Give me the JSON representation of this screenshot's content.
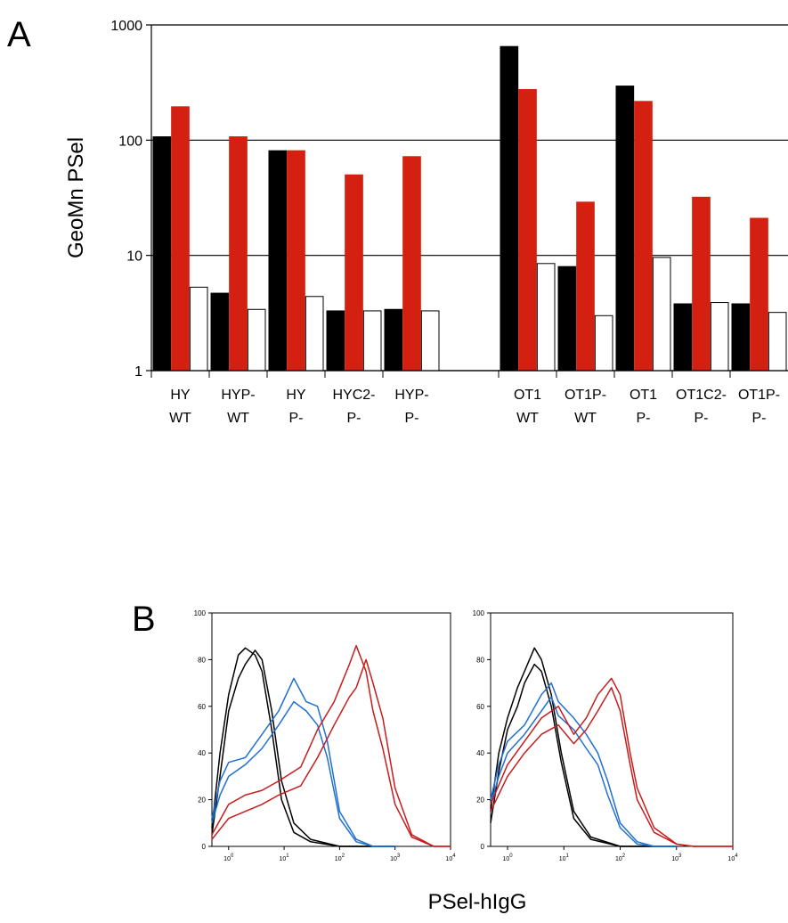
{
  "panel_a": {
    "label": "A",
    "chart_data": {
      "type": "bar",
      "scale": "log",
      "ylabel": "GeoMn PSel",
      "ylim": [
        1,
        1000
      ],
      "yticks": [
        "1",
        "10",
        "100",
        "1000"
      ],
      "grid": true,
      "categories": [
        [
          "HY",
          "WT"
        ],
        [
          "HYP-",
          "WT"
        ],
        [
          "HY",
          "P-"
        ],
        [
          "HYC2-",
          "P-"
        ],
        [
          "HYP-",
          "P-"
        ],
        [
          "OT1",
          "WT"
        ],
        [
          "OT1P-",
          "WT"
        ],
        [
          "OT1",
          "P-"
        ],
        [
          "OT1C2-",
          "P-"
        ],
        [
          "OT1P-",
          "P-"
        ]
      ],
      "group_gap_after_index": 4,
      "series": [
        {
          "color": "#000000",
          "fill": "#000000",
          "values": [
            107,
            4.7,
            81,
            3.3,
            3.4,
            650,
            8,
            295,
            3.8,
            3.8
          ]
        },
        {
          "color": "#d42010",
          "fill": "#d42010",
          "values": [
            195,
            107,
            81,
            50,
            72,
            275,
            29,
            217,
            32,
            21
          ]
        },
        {
          "color": "#000000",
          "fill": "#ffffff",
          "values": [
            5.3,
            3.4,
            4.4,
            3.3,
            3.3,
            8.5,
            3.0,
            9.6,
            3.9,
            3.2
          ]
        }
      ]
    }
  },
  "panel_b": {
    "label": "B",
    "xlabel": "PSel-hIgG",
    "chart_data": [
      {
        "type": "line",
        "scale_x": "log",
        "ylim": [
          0,
          100
        ],
        "xlim": [
          0.5,
          10000
        ],
        "yticks": [
          "0",
          "20",
          "40",
          "60",
          "80",
          "100"
        ],
        "xticks": [
          {
            "base": "10",
            "exp": "0"
          },
          {
            "base": "10",
            "exp": "1"
          },
          {
            "base": "10",
            "exp": "2"
          },
          {
            "base": "10",
            "exp": "3"
          },
          {
            "base": "10",
            "exp": "4"
          }
        ],
        "series": [
          {
            "color": "#000000",
            "points": [
              [
                0.5,
                8
              ],
              [
                0.7,
                40
              ],
              [
                1,
                65
              ],
              [
                1.5,
                82
              ],
              [
                2,
                85
              ],
              [
                3,
                82
              ],
              [
                4,
                75
              ],
              [
                6,
                50
              ],
              [
                9,
                20
              ],
              [
                15,
                6
              ],
              [
                30,
                2
              ],
              [
                100,
                0
              ],
              [
                1000,
                0
              ]
            ]
          },
          {
            "color": "#000000",
            "points": [
              [
                0.5,
                5
              ],
              [
                0.7,
                30
              ],
              [
                1,
                58
              ],
              [
                1.5,
                72
              ],
              [
                2,
                78
              ],
              [
                3,
                84
              ],
              [
                4,
                80
              ],
              [
                6,
                58
              ],
              [
                9,
                28
              ],
              [
                15,
                10
              ],
              [
                30,
                3
              ],
              [
                100,
                0
              ],
              [
                1000,
                0
              ]
            ]
          },
          {
            "color": "#2070d0",
            "points": [
              [
                0.5,
                12
              ],
              [
                0.7,
                28
              ],
              [
                1,
                36
              ],
              [
                2,
                38
              ],
              [
                4,
                48
              ],
              [
                8,
                58
              ],
              [
                15,
                72
              ],
              [
                25,
                62
              ],
              [
                40,
                60
              ],
              [
                60,
                45
              ],
              [
                100,
                15
              ],
              [
                200,
                3
              ],
              [
                400,
                0
              ],
              [
                1000,
                0
              ]
            ]
          },
          {
            "color": "#2070d0",
            "points": [
              [
                0.5,
                10
              ],
              [
                0.7,
                22
              ],
              [
                1,
                30
              ],
              [
                2,
                35
              ],
              [
                4,
                42
              ],
              [
                8,
                52
              ],
              [
                15,
                62
              ],
              [
                25,
                58
              ],
              [
                40,
                52
              ],
              [
                60,
                38
              ],
              [
                100,
                12
              ],
              [
                200,
                2
              ],
              [
                400,
                0
              ],
              [
                1000,
                0
              ]
            ]
          },
          {
            "color": "#c81c1c",
            "points": [
              [
                0.5,
                5
              ],
              [
                1,
                18
              ],
              [
                2,
                22
              ],
              [
                4,
                24
              ],
              [
                8,
                28
              ],
              [
                20,
                34
              ],
              [
                40,
                50
              ],
              [
                80,
                62
              ],
              [
                150,
                78
              ],
              [
                200,
                86
              ],
              [
                300,
                75
              ],
              [
                400,
                58
              ],
              [
                600,
                42
              ],
              [
                1000,
                18
              ],
              [
                2000,
                4
              ],
              [
                5000,
                0
              ],
              [
                10000,
                0
              ]
            ]
          },
          {
            "color": "#c81c1c",
            "points": [
              [
                0.5,
                3
              ],
              [
                1,
                12
              ],
              [
                2,
                15
              ],
              [
                4,
                18
              ],
              [
                8,
                22
              ],
              [
                20,
                26
              ],
              [
                40,
                38
              ],
              [
                80,
                52
              ],
              [
                150,
                64
              ],
              [
                200,
                68
              ],
              [
                300,
                80
              ],
              [
                400,
                70
              ],
              [
                600,
                55
              ],
              [
                1000,
                25
              ],
              [
                2000,
                5
              ],
              [
                5000,
                0
              ],
              [
                10000,
                0
              ]
            ]
          }
        ]
      },
      {
        "type": "line",
        "scale_x": "log",
        "ylim": [
          0,
          100
        ],
        "xlim": [
          0.5,
          10000
        ],
        "yticks": [
          "0",
          "20",
          "40",
          "60",
          "80",
          "100"
        ],
        "xticks": [
          {
            "base": "10",
            "exp": "0"
          },
          {
            "base": "10",
            "exp": "1"
          },
          {
            "base": "10",
            "exp": "2"
          },
          {
            "base": "10",
            "exp": "3"
          },
          {
            "base": "10",
            "exp": "4"
          }
        ],
        "series": [
          {
            "color": "#000000",
            "points": [
              [
                0.5,
                15
              ],
              [
                0.7,
                40
              ],
              [
                1,
                55
              ],
              [
                1.5,
                68
              ],
              [
                2,
                75
              ],
              [
                3,
                85
              ],
              [
                4,
                80
              ],
              [
                6,
                65
              ],
              [
                9,
                40
              ],
              [
                15,
                15
              ],
              [
                30,
                4
              ],
              [
                100,
                0
              ],
              [
                1000,
                0
              ]
            ]
          },
          {
            "color": "#000000",
            "points": [
              [
                0.5,
                10
              ],
              [
                0.7,
                32
              ],
              [
                1,
                50
              ],
              [
                1.5,
                60
              ],
              [
                2,
                70
              ],
              [
                3,
                78
              ],
              [
                4,
                75
              ],
              [
                6,
                60
              ],
              [
                9,
                36
              ],
              [
                15,
                12
              ],
              [
                30,
                3
              ],
              [
                100,
                0
              ],
              [
                1000,
                0
              ]
            ]
          },
          {
            "color": "#2070d0",
            "points": [
              [
                0.5,
                20
              ],
              [
                0.7,
                35
              ],
              [
                1,
                45
              ],
              [
                2,
                52
              ],
              [
                4,
                65
              ],
              [
                6,
                70
              ],
              [
                8,
                62
              ],
              [
                15,
                55
              ],
              [
                25,
                48
              ],
              [
                40,
                40
              ],
              [
                60,
                28
              ],
              [
                100,
                10
              ],
              [
                200,
                2
              ],
              [
                400,
                0
              ],
              [
                1000,
                0
              ]
            ]
          },
          {
            "color": "#2070d0",
            "points": [
              [
                0.5,
                18
              ],
              [
                0.7,
                30
              ],
              [
                1,
                40
              ],
              [
                2,
                48
              ],
              [
                4,
                58
              ],
              [
                6,
                64
              ],
              [
                8,
                56
              ],
              [
                15,
                50
              ],
              [
                25,
                42
              ],
              [
                40,
                35
              ],
              [
                60,
                22
              ],
              [
                100,
                8
              ],
              [
                200,
                1
              ],
              [
                400,
                0
              ],
              [
                1000,
                0
              ]
            ]
          },
          {
            "color": "#c81c1c",
            "points": [
              [
                0.5,
                18
              ],
              [
                1,
                35
              ],
              [
                2,
                45
              ],
              [
                4,
                55
              ],
              [
                8,
                60
              ],
              [
                15,
                48
              ],
              [
                25,
                55
              ],
              [
                40,
                65
              ],
              [
                70,
                72
              ],
              [
                100,
                65
              ],
              [
                150,
                40
              ],
              [
                200,
                25
              ],
              [
                400,
                8
              ],
              [
                1000,
                1
              ],
              [
                2000,
                0
              ],
              [
                10000,
                0
              ]
            ]
          },
          {
            "color": "#c81c1c",
            "points": [
              [
                0.5,
                15
              ],
              [
                1,
                30
              ],
              [
                2,
                40
              ],
              [
                4,
                48
              ],
              [
                8,
                52
              ],
              [
                15,
                44
              ],
              [
                25,
                50
              ],
              [
                40,
                58
              ],
              [
                70,
                68
              ],
              [
                100,
                58
              ],
              [
                150,
                35
              ],
              [
                200,
                20
              ],
              [
                400,
                6
              ],
              [
                1000,
                1
              ],
              [
                2000,
                0
              ],
              [
                10000,
                0
              ]
            ]
          }
        ]
      }
    ]
  }
}
